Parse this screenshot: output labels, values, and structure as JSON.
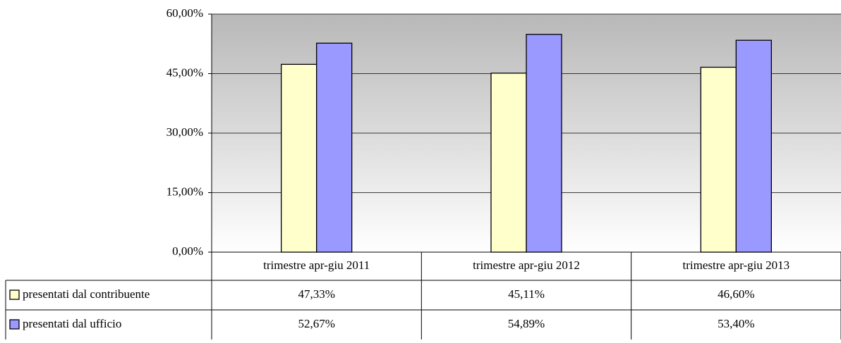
{
  "chart_data": {
    "type": "bar",
    "categories": [
      "trimestre apr-giu 2011",
      "trimestre apr-giu 2012",
      "trimestre apr-giu 2013"
    ],
    "series": [
      {
        "name": "presentati dal contribuente",
        "color": "#ffffcc",
        "values": [
          47.33,
          45.11,
          46.6
        ],
        "value_labels": [
          "47,33%",
          "45,11%",
          "46,60%"
        ]
      },
      {
        "name": "presentati dal ufficio",
        "color": "#9999ff",
        "values": [
          52.67,
          54.89,
          53.4
        ],
        "value_labels": [
          "52,67%",
          "54,89%",
          "53,40%"
        ]
      }
    ],
    "ylim": [
      0,
      60
    ],
    "yticks": [
      {
        "value": 0,
        "label": "0,00%"
      },
      {
        "value": 15,
        "label": "15,00%"
      },
      {
        "value": 30,
        "label": "30,00%"
      },
      {
        "value": 45,
        "label": "45,00%"
      },
      {
        "value": 60,
        "label": "60,00%"
      }
    ],
    "grid": true,
    "data_table": true
  }
}
